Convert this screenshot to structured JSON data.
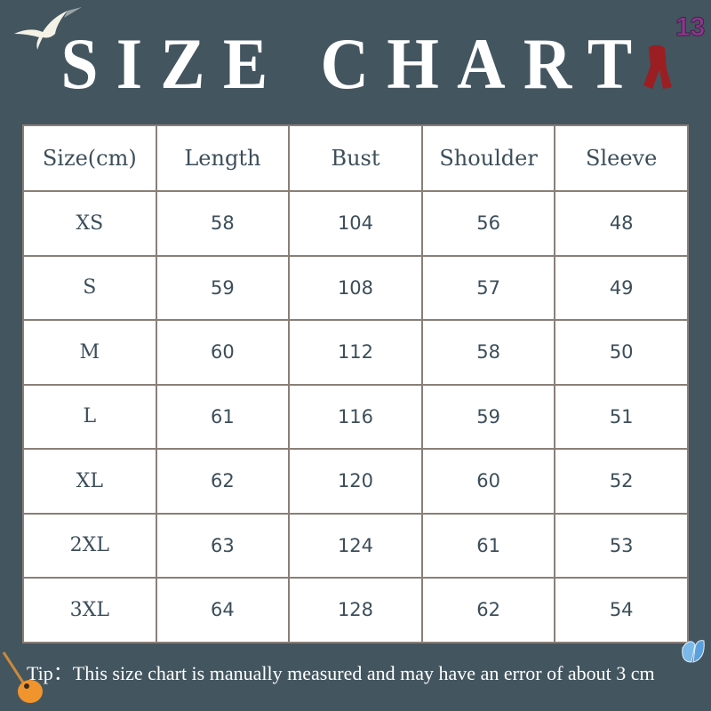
{
  "title": "SIZE CHART",
  "badge": "13",
  "table": {
    "headers": [
      "Size(cm)",
      "Length",
      "Bust",
      "Shoulder",
      "Sleeve"
    ],
    "rows": [
      [
        "XS",
        "58",
        "104",
        "56",
        "48"
      ],
      [
        "S",
        "59",
        "108",
        "57",
        "49"
      ],
      [
        "M",
        "60",
        "112",
        "58",
        "50"
      ],
      [
        "L",
        "61",
        "116",
        "59",
        "51"
      ],
      [
        "XL",
        "62",
        "120",
        "60",
        "52"
      ],
      [
        "2XL",
        "63",
        "124",
        "61",
        "53"
      ],
      [
        "3XL",
        "64",
        "128",
        "62",
        "54"
      ]
    ]
  },
  "tip": "Tip：This size chart is manually measured and may have an error of about 3 cm",
  "colors": {
    "background": "#43555f",
    "text": "#3c4e5a",
    "border": "#8a7f78"
  },
  "icons": [
    "seagull-icon",
    "scarf-icon",
    "guitar-icon",
    "butterfly-icon"
  ]
}
